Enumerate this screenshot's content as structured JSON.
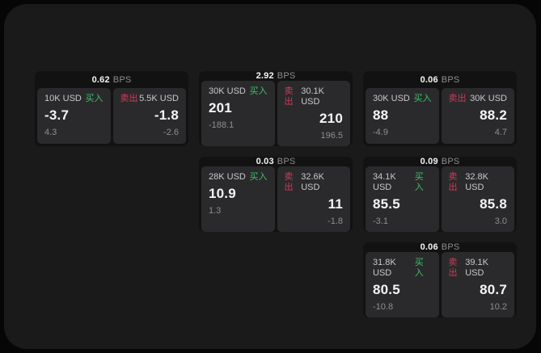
{
  "colors": {
    "outer_bg": "#060607",
    "surface_bg": "#1a1a1b",
    "card_bg": "#121213",
    "panel_bg": "#2a2a2c",
    "buy_green": "#3fbf6b",
    "sell_red": "#ce3b56",
    "text_primary": "#f5f5f6",
    "text_secondary": "#c9c9cb",
    "text_muted": "#8e8e90"
  },
  "labels": {
    "bps_unit": "BPS",
    "buy": "买入",
    "sell": "卖出"
  },
  "cards": [
    {
      "row": 1,
      "col": 1,
      "bps": "0.62",
      "buy": {
        "size": "10K USD",
        "price": "-3.7",
        "delta": "4.3"
      },
      "sell": {
        "size": "5.5K USD",
        "price": "-1.8",
        "delta": "-2.6"
      }
    },
    {
      "row": 1,
      "col": 2,
      "bps": "2.92",
      "buy": {
        "size": "30K USD",
        "price": "201",
        "delta": "-188.1"
      },
      "sell": {
        "size": "30.1K USD",
        "price": "210",
        "delta": "196.5"
      }
    },
    {
      "row": 1,
      "col": 3,
      "bps": "0.06",
      "buy": {
        "size": "30K USD",
        "price": "88",
        "delta": "-4.9"
      },
      "sell": {
        "size": "30K USD",
        "price": "88.2",
        "delta": "4.7"
      }
    },
    {
      "row": 2,
      "col": 2,
      "bps": "0.03",
      "buy": {
        "size": "28K USD",
        "price": "10.9",
        "delta": "1.3"
      },
      "sell": {
        "size": "32.6K USD",
        "price": "11",
        "delta": "-1.8"
      }
    },
    {
      "row": 2,
      "col": 3,
      "bps": "0.09",
      "buy": {
        "size": "34.1K USD",
        "price": "85.5",
        "delta": "-3.1"
      },
      "sell": {
        "size": "32.8K USD",
        "price": "85.8",
        "delta": "3.0"
      }
    },
    {
      "row": 3,
      "col": 3,
      "bps": "0.06",
      "buy": {
        "size": "31.8K USD",
        "price": "80.5",
        "delta": "-10.8"
      },
      "sell": {
        "size": "39.1K USD",
        "price": "80.7",
        "delta": "10.2"
      }
    }
  ]
}
